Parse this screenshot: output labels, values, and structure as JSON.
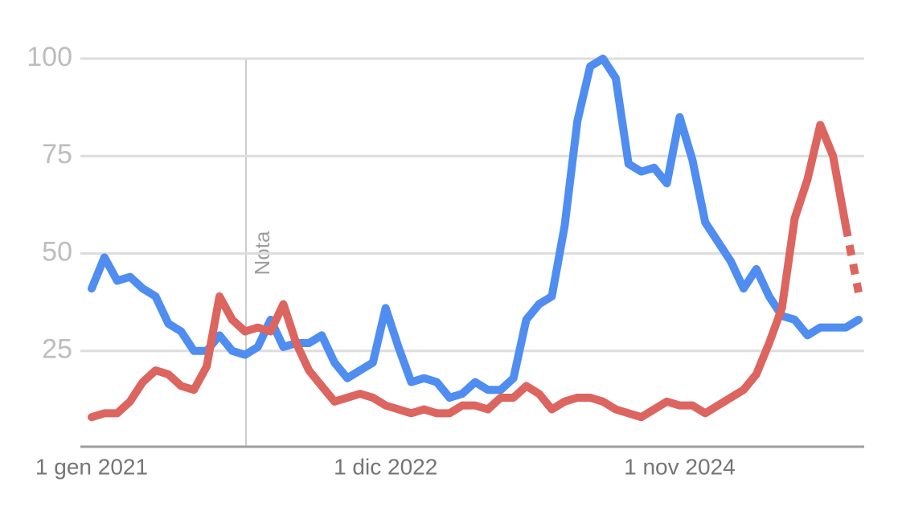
{
  "chart_data": {
    "type": "line",
    "annotation": "Nota",
    "categories": [
      "1 gen 2021",
      null,
      null,
      null,
      null,
      null,
      null,
      null,
      null,
      null,
      null,
      null,
      null,
      null,
      null,
      null,
      null,
      null,
      null,
      null,
      null,
      null,
      null,
      "1 dic 2022",
      null,
      null,
      null,
      null,
      null,
      null,
      null,
      null,
      null,
      null,
      null,
      null,
      null,
      null,
      null,
      null,
      null,
      null,
      null,
      null,
      null,
      null,
      "1 nov 2024",
      null,
      null,
      null,
      null,
      null,
      null,
      null,
      null,
      null,
      null,
      null,
      null,
      null,
      null
    ],
    "series": [
      {
        "color": "#4f8df0",
        "dashed_last_segment": false,
        "values": [
          41,
          49,
          43,
          44,
          41,
          39,
          32,
          30,
          25,
          25,
          29,
          25,
          24,
          26,
          33,
          26,
          27,
          27,
          29,
          22,
          18,
          20,
          22,
          36,
          26,
          17,
          18,
          17,
          13,
          14,
          17,
          15,
          15,
          18,
          33,
          37,
          39,
          57,
          84,
          98,
          100,
          95,
          73,
          71,
          72,
          68,
          85,
          74,
          58,
          53,
          48,
          41,
          46,
          39,
          34,
          33,
          29,
          31,
          31,
          31,
          33
        ]
      },
      {
        "color": "#dc6560",
        "dashed_last_segment": true,
        "values": [
          8,
          9,
          9,
          12,
          17,
          20,
          19,
          16,
          15,
          21,
          39,
          33,
          30,
          31,
          30,
          37,
          27,
          20,
          16,
          12,
          13,
          14,
          13,
          11,
          10,
          9,
          10,
          9,
          9,
          11,
          11,
          10,
          13,
          13,
          16,
          14,
          10,
          12,
          13,
          13,
          12,
          10,
          9,
          8,
          10,
          12,
          11,
          11,
          9,
          11,
          13,
          15,
          19,
          27,
          36,
          59,
          69,
          83,
          75,
          57,
          40
        ]
      }
    ],
    "ylim": [
      0,
      100
    ],
    "yticks": [
      25,
      50,
      75,
      100
    ],
    "grid": true
  }
}
